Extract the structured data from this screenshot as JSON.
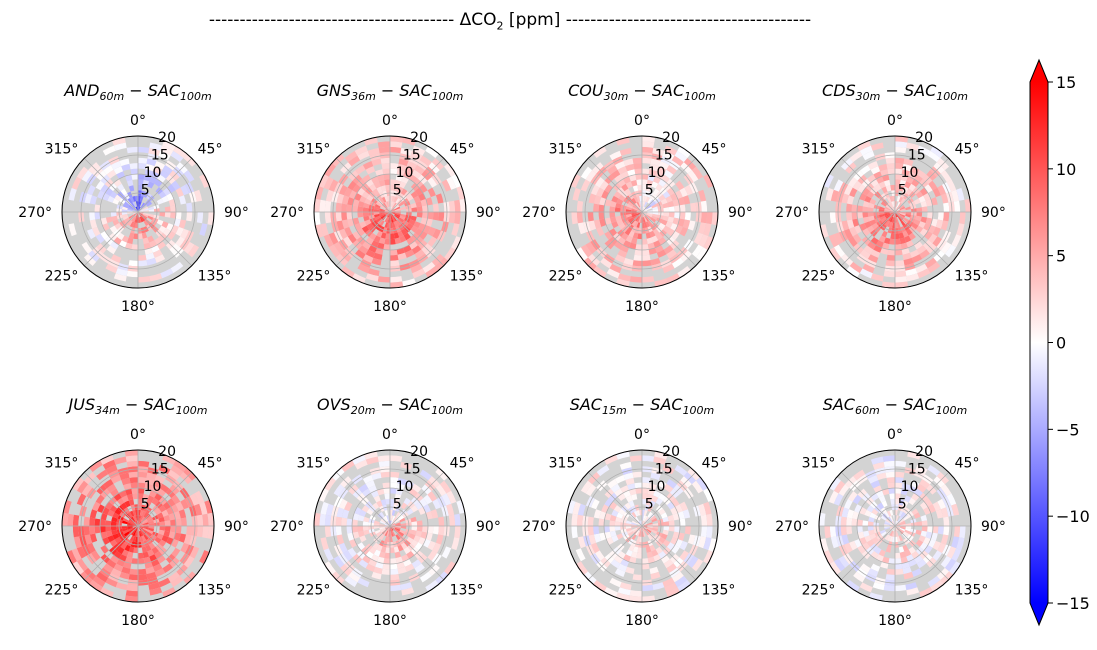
{
  "figure": {
    "title_prefix": "---------------------------------------- ",
    "title_quantity": "ΔCO",
    "title_sub": "2",
    "title_unit": " [ppm] ",
    "title_suffix": "----------------------------------------"
  },
  "chart_data": {
    "type": "heatmap",
    "subtype": "polar wind-rose difference maps",
    "angular_ticks": [
      "0°",
      "45°",
      "90°",
      "135°",
      "180°",
      "225°",
      "270°",
      "315°"
    ],
    "radial_ticks": [
      5,
      10,
      15,
      20
    ],
    "radial_max": 20,
    "colorbar": {
      "cmap": "bwr",
      "min": -15,
      "max": 15,
      "ticks": [
        15,
        10,
        5,
        0,
        -5,
        -10,
        -15
      ],
      "tick_labels": [
        "15",
        "10",
        "5",
        "0",
        "−5",
        "−10",
        "−15"
      ],
      "extend": "both"
    },
    "panels": [
      {
        "station": "AND",
        "station_sub": "60m",
        "minus": " − ",
        "ref": "SAC",
        "ref_sub": "100m",
        "pattern": {
          "mean": 2,
          "bias_angle": 170,
          "bias_strength": 10,
          "north_neg": -6,
          "radial_decay": 0.1,
          "fill": 0.72
        }
      },
      {
        "station": "GNS",
        "station_sub": "36m",
        "minus": " − ",
        "ref": "SAC",
        "ref_sub": "100m",
        "pattern": {
          "mean": 8,
          "bias_angle": 180,
          "bias_strength": 4,
          "north_neg": -2,
          "radial_decay": 0.05,
          "fill": 0.9
        }
      },
      {
        "station": "COU",
        "station_sub": "30m",
        "minus": " − ",
        "ref": "SAC",
        "ref_sub": "100m",
        "pattern": {
          "mean": 5,
          "bias_angle": 240,
          "bias_strength": 4,
          "north_neg": -3,
          "radial_decay": 0.04,
          "fill": 0.9
        }
      },
      {
        "station": "CDS",
        "station_sub": "30m",
        "minus": " − ",
        "ref": "SAC",
        "ref_sub": "100m",
        "pattern": {
          "mean": 7,
          "bias_angle": 200,
          "bias_strength": 4,
          "north_neg": 0,
          "radial_decay": 0.06,
          "fill": 0.85
        }
      },
      {
        "station": "JUS",
        "station_sub": "34m",
        "minus": " − ",
        "ref": "SAC",
        "ref_sub": "100m",
        "pattern": {
          "mean": 11,
          "bias_angle": 250,
          "bias_strength": 3,
          "north_neg": 0,
          "radial_decay": 0.04,
          "fill": 0.9
        }
      },
      {
        "station": "OVS",
        "station_sub": "20m",
        "minus": " − ",
        "ref": "SAC",
        "ref_sub": "100m",
        "pattern": {
          "mean": 4,
          "bias_angle": 150,
          "bias_strength": 6,
          "north_neg": -2,
          "radial_decay": 0.12,
          "fill": 0.8
        }
      },
      {
        "station": "SAC",
        "station_sub": "15m",
        "minus": " − ",
        "ref": "SAC",
        "ref_sub": "100m",
        "pattern": {
          "mean": 3,
          "bias_angle": 140,
          "bias_strength": 3,
          "north_neg": -1,
          "radial_decay": 0.12,
          "fill": 0.8
        }
      },
      {
        "station": "SAC",
        "station_sub": "60m",
        "minus": " − ",
        "ref": "SAC",
        "ref_sub": "100m",
        "pattern": {
          "mean": 1.2,
          "bias_angle": 140,
          "bias_strength": 2,
          "north_neg": -1,
          "radial_decay": 0.08,
          "fill": 0.75
        }
      }
    ]
  }
}
